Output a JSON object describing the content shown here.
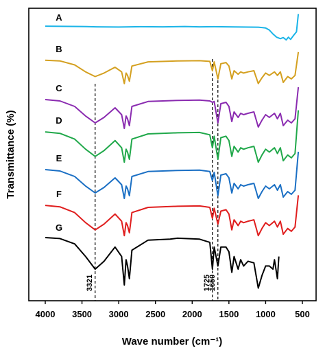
{
  "chart_data": {
    "type": "line",
    "xlabel": "Wave number (cm⁻¹)",
    "ylabel": "Transmittance (%)",
    "xlim": [
      4000,
      500
    ],
    "x_reversed": true,
    "xticks": [
      "4000",
      "3500",
      "3000",
      "2500",
      "2000",
      "1500",
      "1000",
      "500"
    ],
    "xtick_values": [
      4000,
      3500,
      3000,
      2500,
      2000,
      1500,
      1000,
      500
    ],
    "y_tick_labels": false,
    "grid": false,
    "legend": "inline-left",
    "series": [
      {
        "name": "A",
        "color": "#1ab4e8",
        "points": [
          [
            4000,
            0.08
          ],
          [
            3500,
            0.1
          ],
          [
            3300,
            0.12
          ],
          [
            3000,
            0.13
          ],
          [
            2700,
            0.11
          ],
          [
            2400,
            0.12
          ],
          [
            2100,
            0.1
          ],
          [
            1900,
            0.12
          ],
          [
            1700,
            0.11
          ],
          [
            1500,
            0.12
          ],
          [
            1300,
            0.13
          ],
          [
            1100,
            0.14
          ],
          [
            1000,
            0.18
          ],
          [
            950,
            0.3
          ],
          [
            900,
            0.52
          ],
          [
            850,
            0.7
          ],
          [
            800,
            0.78
          ],
          [
            760,
            0.72
          ],
          [
            720,
            0.85
          ],
          [
            690,
            0.7
          ],
          [
            660,
            0.82
          ],
          [
            620,
            0.6
          ],
          [
            580,
            0.4
          ],
          [
            555,
            -0.6
          ]
        ]
      },
      {
        "name": "B",
        "color": "#d4a020",
        "points": [
          [
            4000,
            0.05
          ],
          [
            3800,
            0.08
          ],
          [
            3600,
            0.25
          ],
          [
            3450,
            0.55
          ],
          [
            3321,
            0.75
          ],
          [
            3200,
            0.6
          ],
          [
            3050,
            0.35
          ],
          [
            2960,
            0.55
          ],
          [
            2924,
            1.05
          ],
          [
            2900,
            0.6
          ],
          [
            2880,
            0.7
          ],
          [
            2855,
            0.95
          ],
          [
            2820,
            0.3
          ],
          [
            2600,
            0.12
          ],
          [
            2200,
            0.08
          ],
          [
            1900,
            0.07
          ],
          [
            1760,
            0.1
          ],
          [
            1725,
            0.5
          ],
          [
            1700,
            0.12
          ],
          [
            1650,
            0.85
          ],
          [
            1610,
            0.2
          ],
          [
            1540,
            0.15
          ],
          [
            1500,
            0.3
          ],
          [
            1460,
            0.85
          ],
          [
            1430,
            0.5
          ],
          [
            1375,
            0.65
          ],
          [
            1340,
            0.55
          ],
          [
            1300,
            0.6
          ],
          [
            1240,
            0.55
          ],
          [
            1160,
            0.5
          ],
          [
            1100,
            1.05
          ],
          [
            1050,
            0.8
          ],
          [
            1000,
            0.6
          ],
          [
            950,
            0.7
          ],
          [
            880,
            0.55
          ],
          [
            840,
            0.7
          ],
          [
            800,
            0.55
          ],
          [
            760,
            1.0
          ],
          [
            700,
            0.75
          ],
          [
            650,
            0.85
          ],
          [
            600,
            0.7
          ],
          [
            555,
            -0.3
          ]
        ]
      },
      {
        "name": "C",
        "color": "#8a2bb0",
        "points": [
          [
            4000,
            0.05
          ],
          [
            3800,
            0.1
          ],
          [
            3600,
            0.3
          ],
          [
            3450,
            0.65
          ],
          [
            3321,
            0.9
          ],
          [
            3200,
            0.7
          ],
          [
            3050,
            0.35
          ],
          [
            2960,
            0.6
          ],
          [
            2924,
            1.1
          ],
          [
            2900,
            0.65
          ],
          [
            2880,
            0.75
          ],
          [
            2855,
            1.0
          ],
          [
            2820,
            0.3
          ],
          [
            2600,
            0.12
          ],
          [
            2200,
            0.08
          ],
          [
            1900,
            0.07
          ],
          [
            1760,
            0.1
          ],
          [
            1725,
            0.15
          ],
          [
            1700,
            0.12
          ],
          [
            1650,
            0.9
          ],
          [
            1610,
            0.2
          ],
          [
            1540,
            0.15
          ],
          [
            1500,
            0.3
          ],
          [
            1460,
            0.85
          ],
          [
            1430,
            0.5
          ],
          [
            1375,
            0.7
          ],
          [
            1340,
            0.55
          ],
          [
            1300,
            0.6
          ],
          [
            1240,
            0.55
          ],
          [
            1160,
            0.5
          ],
          [
            1100,
            1.05
          ],
          [
            1050,
            0.8
          ],
          [
            1000,
            0.6
          ],
          [
            950,
            0.7
          ],
          [
            880,
            0.55
          ],
          [
            840,
            0.75
          ],
          [
            800,
            0.55
          ],
          [
            760,
            1.0
          ],
          [
            700,
            0.8
          ],
          [
            650,
            0.9
          ],
          [
            600,
            0.75
          ],
          [
            555,
            -0.4
          ]
        ]
      },
      {
        "name": "D",
        "color": "#20a84a",
        "points": [
          [
            4000,
            0.05
          ],
          [
            3800,
            0.1
          ],
          [
            3600,
            0.3
          ],
          [
            3450,
            0.65
          ],
          [
            3321,
            0.9
          ],
          [
            3200,
            0.7
          ],
          [
            3050,
            0.35
          ],
          [
            2960,
            0.6
          ],
          [
            2924,
            1.1
          ],
          [
            2900,
            0.65
          ],
          [
            2880,
            0.75
          ],
          [
            2855,
            1.0
          ],
          [
            2820,
            0.3
          ],
          [
            2600,
            0.12
          ],
          [
            2200,
            0.08
          ],
          [
            1900,
            0.07
          ],
          [
            1760,
            0.15
          ],
          [
            1725,
            0.6
          ],
          [
            1700,
            0.2
          ],
          [
            1650,
            1.0
          ],
          [
            1610,
            0.25
          ],
          [
            1540,
            0.2
          ],
          [
            1500,
            0.35
          ],
          [
            1460,
            0.9
          ],
          [
            1430,
            0.55
          ],
          [
            1375,
            0.75
          ],
          [
            1340,
            0.6
          ],
          [
            1300,
            0.65
          ],
          [
            1240,
            0.6
          ],
          [
            1160,
            0.55
          ],
          [
            1100,
            1.1
          ],
          [
            1050,
            0.85
          ],
          [
            1000,
            0.65
          ],
          [
            950,
            0.75
          ],
          [
            880,
            0.6
          ],
          [
            840,
            0.8
          ],
          [
            800,
            0.6
          ],
          [
            760,
            1.05
          ],
          [
            700,
            0.85
          ],
          [
            650,
            0.95
          ],
          [
            600,
            0.8
          ],
          [
            555,
            -0.7
          ]
        ]
      },
      {
        "name": "E",
        "color": "#1a6fc4",
        "points": [
          [
            4000,
            0.05
          ],
          [
            3800,
            0.1
          ],
          [
            3600,
            0.3
          ],
          [
            3450,
            0.65
          ],
          [
            3321,
            0.9
          ],
          [
            3200,
            0.7
          ],
          [
            3050,
            0.35
          ],
          [
            2960,
            0.6
          ],
          [
            2924,
            1.1
          ],
          [
            2900,
            0.65
          ],
          [
            2880,
            0.75
          ],
          [
            2855,
            1.0
          ],
          [
            2820,
            0.3
          ],
          [
            2600,
            0.12
          ],
          [
            2200,
            0.08
          ],
          [
            1900,
            0.07
          ],
          [
            1760,
            0.12
          ],
          [
            1725,
            0.45
          ],
          [
            1700,
            0.15
          ],
          [
            1650,
            1.0
          ],
          [
            1610,
            0.25
          ],
          [
            1540,
            0.2
          ],
          [
            1500,
            0.35
          ],
          [
            1460,
            0.9
          ],
          [
            1430,
            0.55
          ],
          [
            1375,
            0.75
          ],
          [
            1340,
            0.6
          ],
          [
            1300,
            0.65
          ],
          [
            1240,
            0.6
          ],
          [
            1160,
            0.55
          ],
          [
            1100,
            1.1
          ],
          [
            1050,
            0.85
          ],
          [
            1000,
            0.65
          ],
          [
            950,
            0.75
          ],
          [
            880,
            0.6
          ],
          [
            840,
            0.8
          ],
          [
            800,
            0.6
          ],
          [
            760,
            1.05
          ],
          [
            700,
            0.85
          ],
          [
            650,
            0.95
          ],
          [
            600,
            0.8
          ],
          [
            555,
            -0.6
          ]
        ]
      },
      {
        "name": "F",
        "color": "#e01e1e",
        "points": [
          [
            4000,
            0.05
          ],
          [
            3800,
            0.1
          ],
          [
            3600,
            0.3
          ],
          [
            3450,
            0.65
          ],
          [
            3321,
            0.9
          ],
          [
            3200,
            0.7
          ],
          [
            3050,
            0.35
          ],
          [
            2960,
            0.6
          ],
          [
            2924,
            1.1
          ],
          [
            2900,
            0.65
          ],
          [
            2880,
            0.75
          ],
          [
            2855,
            1.0
          ],
          [
            2820,
            0.3
          ],
          [
            2600,
            0.12
          ],
          [
            2200,
            0.08
          ],
          [
            1900,
            0.07
          ],
          [
            1760,
            0.12
          ],
          [
            1725,
            0.5
          ],
          [
            1700,
            0.15
          ],
          [
            1650,
            0.7
          ],
          [
            1610,
            0.25
          ],
          [
            1540,
            0.2
          ],
          [
            1500,
            0.35
          ],
          [
            1460,
            0.9
          ],
          [
            1430,
            0.55
          ],
          [
            1375,
            0.75
          ],
          [
            1340,
            0.6
          ],
          [
            1300,
            0.65
          ],
          [
            1240,
            0.6
          ],
          [
            1160,
            0.55
          ],
          [
            1100,
            1.1
          ],
          [
            1050,
            0.85
          ],
          [
            1000,
            0.65
          ],
          [
            950,
            0.75
          ],
          [
            880,
            0.6
          ],
          [
            840,
            0.8
          ],
          [
            800,
            0.6
          ],
          [
            760,
            1.05
          ],
          [
            700,
            0.85
          ],
          [
            650,
            0.95
          ],
          [
            600,
            0.8
          ],
          [
            555,
            -0.3
          ]
        ]
      },
      {
        "name": "G",
        "color": "#000000",
        "points": [
          [
            4000,
            0.0
          ],
          [
            3800,
            0.03
          ],
          [
            3600,
            0.2
          ],
          [
            3450,
            0.6
          ],
          [
            3321,
            1.0
          ],
          [
            3200,
            0.75
          ],
          [
            3050,
            0.3
          ],
          [
            2960,
            0.6
          ],
          [
            2924,
            1.5
          ],
          [
            2900,
            0.7
          ],
          [
            2880,
            0.9
          ],
          [
            2855,
            1.3
          ],
          [
            2820,
            0.4
          ],
          [
            2600,
            0.08
          ],
          [
            2300,
            0.05
          ],
          [
            2200,
            0.02
          ],
          [
            1900,
            0.05
          ],
          [
            1760,
            0.15
          ],
          [
            1725,
            1.0
          ],
          [
            1700,
            0.3
          ],
          [
            1650,
            0.9
          ],
          [
            1610,
            0.3
          ],
          [
            1540,
            0.3
          ],
          [
            1500,
            0.45
          ],
          [
            1460,
            1.1
          ],
          [
            1430,
            0.6
          ],
          [
            1375,
            1.0
          ],
          [
            1340,
            0.7
          ],
          [
            1300,
            0.9
          ],
          [
            1240,
            0.75
          ],
          [
            1160,
            0.8
          ],
          [
            1100,
            1.6
          ],
          [
            1050,
            1.2
          ],
          [
            1000,
            0.9
          ],
          [
            950,
            0.9
          ],
          [
            900,
            1.0
          ],
          [
            880,
            0.7
          ],
          [
            840,
            1.3
          ],
          [
            820,
            0.6
          ]
        ]
      }
    ],
    "annotations": [
      {
        "x": 3321,
        "label": "3321"
      },
      {
        "x": 1725,
        "label": "1725"
      },
      {
        "x": 1650,
        "label": "1650"
      }
    ]
  }
}
